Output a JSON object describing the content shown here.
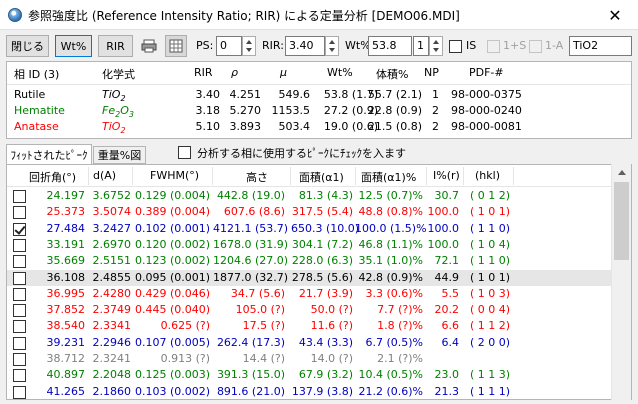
{
  "window": {
    "title": "参照強度比 (Reference Intensity Ratio; RIR) による定量分析 [DEMO06.MDI]"
  },
  "toolbar": {
    "close_label": "閉じる",
    "wt_label": "Wt%",
    "rir_label": "RIR",
    "ps_label": "PS:",
    "ps_value": "0",
    "rir_field_label": "RIR:",
    "rir_value": "3.40",
    "wt_field_label": "Wt%",
    "wt_value": "53.8",
    "wt_spin_value": "1",
    "is_label": "IS",
    "plus_s_label": "1+S",
    "one_a_label": "1-A",
    "phase_name_value": "TiO2"
  },
  "phase_table": {
    "headers": [
      "相 ID (3)",
      "化学式",
      "RIR",
      "ρ",
      "μ",
      "Wt%",
      "体積%",
      "NP",
      "PDF-#"
    ],
    "rows": [
      {
        "name": "Rutile",
        "formula": "TiO",
        "sub": "2",
        "rir": "3.40",
        "rho": "4.251",
        "mu": "549.6",
        "wt": "53.8 (1.7)",
        "vol": "55.7 (2.1)",
        "np": "1",
        "pdf": "98-000-0375",
        "color": "#000000"
      },
      {
        "name": "Hematite",
        "formula": "Fe",
        "sub": "2",
        "formula2": "O",
        "sub2": "3",
        "rir": "3.18",
        "rho": "5.270",
        "mu": "1153.5",
        "wt": "27.2 (0.9)",
        "vol": "22.8 (0.9)",
        "np": "2",
        "pdf": "98-000-0240",
        "color": "#008000"
      },
      {
        "name": "Anatase",
        "formula": "TiO",
        "sub": "2",
        "rir": "5.10",
        "rho": "3.893",
        "mu": "503.4",
        "wt": "19.0 (0.6)",
        "vol": "21.5 (0.8)",
        "np": "2",
        "pdf": "98-000-0081",
        "color": "#ff0000"
      }
    ]
  },
  "tabs": {
    "fit_label": "ﾌｨｯﾄされたﾋﾟｰｸ",
    "weight_label": "重量%図"
  },
  "phase_check_label": "分析する相に使用するﾋﾟｰｸにﾁｪｯｸを入ます",
  "peak_table": {
    "headers": [
      "回折角(°)",
      "d(A)",
      "FWHM(°)",
      "高さ",
      "面積(α1)",
      "面積(α1)%",
      "I%(r)",
      "(hkl)"
    ],
    "rows": [
      {
        "checked": false,
        "angle": "24.197",
        "d": "3.6752",
        "fwhm": "0.129 (0.004)",
        "h": "442.8 (19.0)",
        "a": "81.3 (4.3)",
        "ap": "12.5 (0.7)%",
        "ir": "30.7",
        "hkl": "( 0 1 2)",
        "color": "#008000"
      },
      {
        "checked": false,
        "angle": "25.373",
        "d": "3.5074",
        "fwhm": "0.389 (0.004)",
        "h": "607.6 (8.6)",
        "a": "317.5 (5.4)",
        "ap": "48.8 (0.8)%",
        "ir": "100.0",
        "hkl": "( 1 0 1)",
        "color": "#ff0000"
      },
      {
        "checked": true,
        "angle": "27.484",
        "d": "3.2427",
        "fwhm": "0.102 (0.001)",
        "h": "4121.1 (53.7)",
        "a": "650.3 (10.0)",
        "ap": "100.0 (1.5)%",
        "ir": "100.0",
        "hkl": "( 1 1 0)",
        "color": "#0000c0"
      },
      {
        "checked": false,
        "angle": "33.191",
        "d": "2.6970",
        "fwhm": "0.120 (0.002)",
        "h": "1678.0 (31.9)",
        "a": "304.1 (7.2)",
        "ap": "46.8 (1.1)%",
        "ir": "100.0",
        "hkl": "( 1 0 4)",
        "color": "#008000"
      },
      {
        "checked": false,
        "angle": "35.669",
        "d": "2.5151",
        "fwhm": "0.123 (0.002)",
        "h": "1204.6 (27.0)",
        "a": "228.0 (6.3)",
        "ap": "35.1 (1.0)%",
        "ir": "72.1",
        "hkl": "( 1 1 0)",
        "color": "#008000"
      },
      {
        "checked": false,
        "angle": "36.108",
        "d": "2.4855",
        "fwhm": "0.095 (0.001)",
        "h": "1877.0 (32.7)",
        "a": "278.5 (5.6)",
        "ap": "42.8 (0.9)%",
        "ir": "44.9",
        "hkl": "( 1 0 1)",
        "color": "#000000"
      },
      {
        "checked": false,
        "angle": "36.995",
        "d": "2.4280",
        "fwhm": "0.429 (0.046)",
        "h": "34.7 (5.6)",
        "a": "21.7 (3.9)",
        "ap": "3.3 (0.6)%",
        "ir": "5.5",
        "hkl": "( 1 0 3)",
        "color": "#ff0000"
      },
      {
        "checked": false,
        "angle": "37.852",
        "d": "2.3749",
        "fwhm": "0.445 (0.040)",
        "h": "105.0 (?)",
        "a": "50.0 (?)",
        "ap": "7.7 (?)%",
        "ir": "20.2",
        "hkl": "( 0 0 4)",
        "color": "#ff0000"
      },
      {
        "checked": false,
        "angle": "38.540",
        "d": "2.3341",
        "fwhm": "0.625 (?)",
        "h": "17.5 (?)",
        "a": "11.6 (?)",
        "ap": "1.8 (?)%",
        "ir": "6.6",
        "hkl": "( 1 1 2)",
        "color": "#ff0000"
      },
      {
        "checked": false,
        "angle": "39.231",
        "d": "2.2946",
        "fwhm": "0.107 (0.005)",
        "h": "262.4 (17.3)",
        "a": "43.4 (3.3)",
        "ap": "6.7 (0.5)%",
        "ir": "6.4",
        "hkl": "( 2 0 0)",
        "color": "#0000c0"
      },
      {
        "checked": false,
        "angle": "38.712",
        "d": "2.3241",
        "fwhm": "0.913 (?)",
        "h": "14.4 (?)",
        "a": "14.0 (?)",
        "ap": "2.1 (?)%",
        "ir": "",
        "hkl": "",
        "color": "#808080"
      },
      {
        "checked": false,
        "angle": "40.897",
        "d": "2.2048",
        "fwhm": "0.125 (0.003)",
        "h": "391.3 (15.0)",
        "a": "67.9 (3.2)",
        "ap": "10.4 (0.5)%",
        "ir": "23.0",
        "hkl": "( 1 1 3)",
        "color": "#008000"
      },
      {
        "checked": false,
        "angle": "41.265",
        "d": "2.1860",
        "fwhm": "0.103 (0.002)",
        "h": "891.6 (21.0)",
        "a": "137.9 (3.8)",
        "ap": "21.2 (0.6)%",
        "ir": "21.3",
        "hkl": "( 1 1 1)",
        "color": "#0000c0"
      }
    ]
  }
}
